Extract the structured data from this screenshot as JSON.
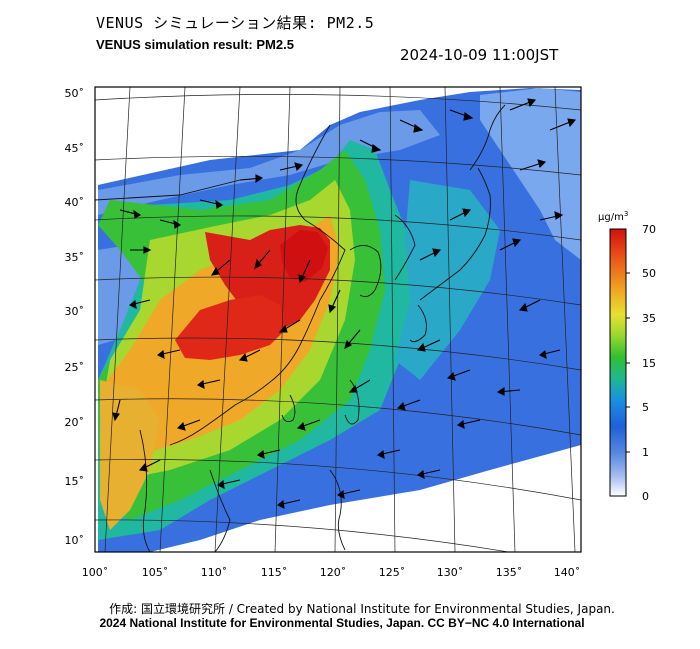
{
  "header": {
    "title_jp": "VENUS シミュレーション結果: PM2.5",
    "title_en": "VENUS simulation result: PM2.5",
    "timestamp": "2024-10-09 11:00JST"
  },
  "map": {
    "region": "East Asia",
    "lon_ticks": [
      "100˚",
      "105˚",
      "110˚",
      "115˚",
      "120˚",
      "125˚",
      "130˚",
      "135˚",
      "140˚"
    ],
    "lat_ticks": [
      "10˚",
      "15˚",
      "20˚",
      "25˚",
      "30˚",
      "35˚",
      "40˚",
      "45˚",
      "50˚"
    ],
    "lon_range": [
      100,
      141
    ],
    "lat_range": [
      9,
      51
    ],
    "overlays": [
      "PM2.5 concentration field",
      "wind vectors",
      "coastlines",
      "graticule"
    ]
  },
  "colorbar": {
    "unit_main": "μg/m",
    "unit_sup": "3",
    "ticks": [
      "70",
      "50",
      "35",
      "15",
      "5",
      "1",
      "0"
    ],
    "colors": [
      "#d01010",
      "#e85018",
      "#f0a020",
      "#e8e030",
      "#98d830",
      "#30c030",
      "#20b890",
      "#1890e0",
      "#2060d8",
      "#5888e0",
      "#a8c0f0",
      "#ffffff"
    ]
  },
  "footer": {
    "credit_jp": "作成: 国立環境研究所 / Created by National Institute for Environmental Studies, Japan.",
    "credit_en": "2024 National Institute for Environmental Studies, Japan. CC BY−NC 4.0 International"
  }
}
